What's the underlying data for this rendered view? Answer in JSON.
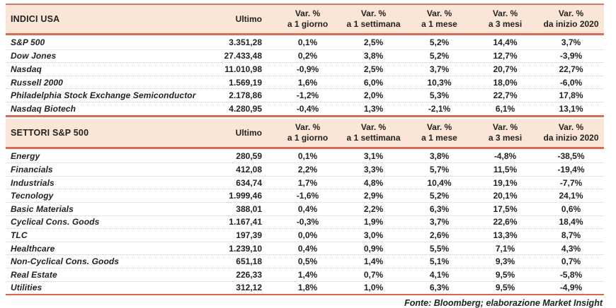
{
  "header": {
    "ultimo": "Ultimo",
    "var_columns": [
      {
        "line1": "Var. %",
        "line2": "a 1 giorno"
      },
      {
        "line1": "Var. %",
        "line2": "a 1 settimana"
      },
      {
        "line1": "Var. %",
        "line2": "a 1 mese"
      },
      {
        "line1": "Var. %",
        "line2": "a 3 mesi"
      },
      {
        "line1": "Var. %",
        "line2": "da inizio 2020"
      }
    ]
  },
  "chart_data": [
    {
      "type": "table",
      "title": "INDICI USA",
      "columns": [
        "INDICI USA",
        "Ultimo",
        "Var. % a 1 giorno",
        "Var. % a 1 settimana",
        "Var. % a 1 mese",
        "Var. % a 3 mesi",
        "Var. % da inizio 2020"
      ],
      "rows": [
        {
          "label": "S&P 500",
          "ultimo": "3.351,28",
          "values": [
            "0,1%",
            "2,5%",
            "5,2%",
            "14,4%",
            "3,7%"
          ]
        },
        {
          "label": "Dow Jones",
          "ultimo": "27.433,48",
          "values": [
            "0,2%",
            "3,8%",
            "5,2%",
            "12,7%",
            "-3,9%"
          ]
        },
        {
          "label": "Nasdaq",
          "ultimo": "11.010,98",
          "values": [
            "-0,9%",
            "2,5%",
            "3,7%",
            "20,7%",
            "22,7%"
          ]
        },
        {
          "label": "Russell 2000",
          "ultimo": "1.569,19",
          "values": [
            "1,6%",
            "6,0%",
            "10,3%",
            "18,0%",
            "-6,0%"
          ]
        },
        {
          "label": "Philadelphia Stock Exchange Semiconductor",
          "ultimo": "2.178,86",
          "values": [
            "-1,2%",
            "2,0%",
            "5,3%",
            "22,7%",
            "17,8%"
          ]
        },
        {
          "label": "Nasdaq Biotech",
          "ultimo": "4.280,95",
          "values": [
            "-0,4%",
            "1,3%",
            "-2,1%",
            "6,1%",
            "13,1%"
          ]
        }
      ]
    },
    {
      "type": "table",
      "title": "SETTORI S&P 500",
      "columns": [
        "SETTORI S&P 500",
        "Ultimo",
        "Var. % a 1 giorno",
        "Var. % a 1 settimana",
        "Var. % a 1 mese",
        "Var. % a 3 mesi",
        "Var. % da inizio 2020"
      ],
      "rows": [
        {
          "label": "Energy",
          "ultimo": "280,59",
          "values": [
            "0,1%",
            "3,1%",
            "3,8%",
            "-4,8%",
            "-38,5%"
          ]
        },
        {
          "label": "Financials",
          "ultimo": "412,08",
          "values": [
            "2,2%",
            "3,3%",
            "5,7%",
            "11,5%",
            "-19,4%"
          ]
        },
        {
          "label": "Industrials",
          "ultimo": "634,74",
          "values": [
            "1,7%",
            "4,8%",
            "10,4%",
            "19,1%",
            "-7,7%"
          ]
        },
        {
          "label": "Tecnology",
          "ultimo": "1.999,46",
          "values": [
            "-1,6%",
            "2,9%",
            "5,2%",
            "20,1%",
            "24,1%"
          ]
        },
        {
          "label": "Basic Materials",
          "ultimo": "388,01",
          "values": [
            "0,4%",
            "2,2%",
            "6,3%",
            "17,5%",
            "0,6%"
          ]
        },
        {
          "label": "Cyclical Cons. Goods",
          "ultimo": "1.167,41",
          "values": [
            "-0,3%",
            "1,9%",
            "3,7%",
            "22,6%",
            "18,4%"
          ]
        },
        {
          "label": "TLC",
          "ultimo": "197,39",
          "values": [
            "0,0%",
            "3,0%",
            "2,6%",
            "13,3%",
            "8,7%"
          ]
        },
        {
          "label": "Healthcare",
          "ultimo": "1.239,10",
          "values": [
            "0,4%",
            "0,9%",
            "5,5%",
            "7,1%",
            "4,3%"
          ]
        },
        {
          "label": "Non-Cyclical Cons. Goods",
          "ultimo": "651,18",
          "values": [
            "0,5%",
            "1,4%",
            "5,1%",
            "9,3%",
            "0,7%"
          ]
        },
        {
          "label": "Real Estate",
          "ultimo": "226,33",
          "values": [
            "1,4%",
            "0,7%",
            "4,1%",
            "9,5%",
            "-5,8%"
          ]
        },
        {
          "label": "Utilities",
          "ultimo": "312,12",
          "values": [
            "1,8%",
            "1,0%",
            "6,3%",
            "9,5%",
            "-4,9%"
          ]
        }
      ]
    }
  ],
  "footer": "Fonte: Bloomberg; elaborazione Market Insight",
  "colors": {
    "accent_line": "#e2634c",
    "accent_line_muted": "#c97f6f",
    "header_background": "#fbe5d6",
    "text": "#222222"
  }
}
